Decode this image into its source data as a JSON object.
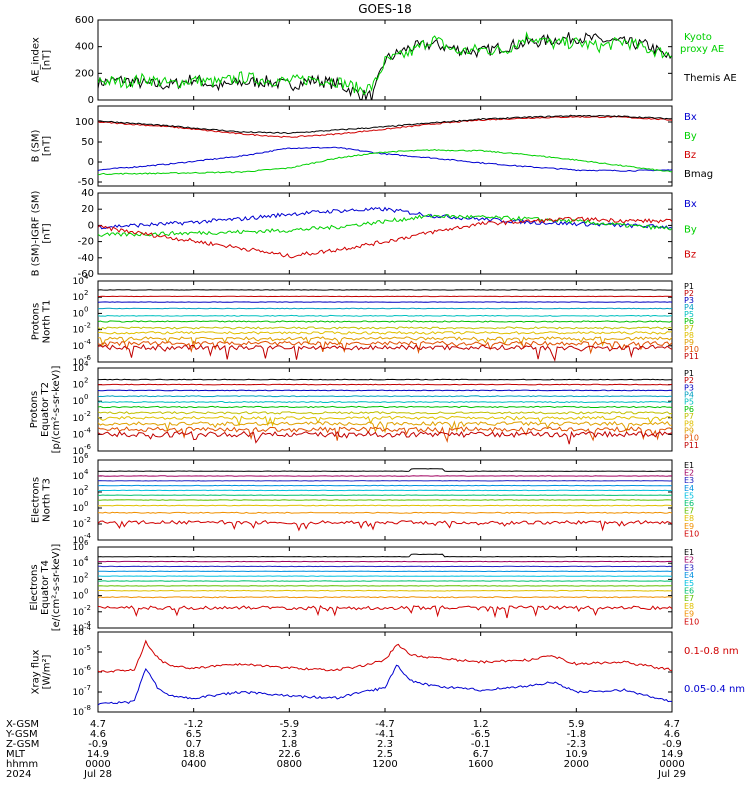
{
  "chart_data": {
    "type": "line",
    "title": "GOES-18",
    "x": {
      "range": [
        0,
        24
      ],
      "tick_hours": [
        0,
        4,
        8,
        12,
        16,
        20,
        24
      ],
      "ephemeris_rows": [
        {
          "label": "X-GSM",
          "values": [
            "4.7",
            "-1.2",
            "-5.9",
            "-4.7",
            "1.2",
            "5.9",
            "4.7"
          ]
        },
        {
          "label": "Y-GSM",
          "values": [
            "4.6",
            "6.5",
            "2.3",
            "-4.1",
            "-6.5",
            "-1.8",
            "4.6"
          ]
        },
        {
          "label": "Z-GSM",
          "values": [
            "-0.9",
            "0.7",
            "1.8",
            "2.3",
            "-0.1",
            "-2.3",
            "-0.9"
          ]
        },
        {
          "label": "MLT",
          "values": [
            "14.9",
            "18.8",
            "22.6",
            "2.5",
            "6.7",
            "10.9",
            "14.9"
          ]
        },
        {
          "label": "hhmm",
          "values": [
            "0000",
            "0400",
            "0800",
            "1200",
            "1600",
            "2000",
            "0000"
          ]
        },
        {
          "label": "2024",
          "values": [
            "Jul 28",
            "",
            "",
            "",
            "",
            "",
            "Jul 29"
          ]
        }
      ]
    },
    "panels": [
      {
        "id": "ae",
        "ylabel": [
          "AE_index",
          "[nT]"
        ],
        "ylim": [
          0,
          600
        ],
        "yticks": [
          "0",
          "200",
          "400",
          "600"
        ],
        "legend": [
          {
            "text": "Kyoto",
            "color": "#00d000"
          },
          {
            "text": "proxy AE",
            "color": "#00d000"
          },
          {
            "text": "Themis AE",
            "color": "#000000"
          }
        ],
        "series": [
          {
            "name": "Themis AE",
            "color": "#000000",
            "x": [
              0,
              1,
              2,
              3,
              4,
              5,
              6,
              7,
              8,
              9,
              10,
              11,
              11.5,
              12,
              13,
              14,
              15,
              16,
              17,
              18,
              19,
              20,
              21,
              22,
              23,
              24
            ],
            "y": [
              130,
              150,
              120,
              110,
              160,
              100,
              130,
              140,
              110,
              150,
              120,
              40,
              30,
              300,
              390,
              420,
              380,
              360,
              400,
              430,
              450,
              470,
              450,
              430,
              410,
              300
            ]
          },
          {
            "name": "Kyoto proxy AE",
            "color": "#00d000",
            "x": [
              0,
              1,
              2,
              3,
              4,
              5,
              6,
              7,
              8,
              9,
              10,
              11,
              11.5,
              12,
              13,
              14,
              15,
              16,
              17,
              18,
              19,
              20,
              21,
              22,
              23,
              24
            ],
            "y": [
              150,
              130,
              160,
              120,
              150,
              130,
              170,
              150,
              140,
              160,
              140,
              80,
              100,
              290,
              350,
              460,
              360,
              380,
              370,
              480,
              420,
              430,
              400,
              440,
              380,
              340
            ]
          }
        ]
      },
      {
        "id": "bsm",
        "ylabel": [
          "B (SM)",
          "[nT]"
        ],
        "ylim": [
          -60,
          140
        ],
        "yticks": [
          "-50",
          "0",
          "50",
          "100"
        ],
        "legend": [
          {
            "text": "Bx",
            "color": "#0000d0"
          },
          {
            "text": "By",
            "color": "#00d000"
          },
          {
            "text": "Bz",
            "color": "#d00000"
          },
          {
            "text": "Bmag",
            "color": "#000000"
          }
        ],
        "series": [
          {
            "name": "Bx",
            "color": "#0000d0",
            "x": [
              0,
              3,
              6,
              8,
              10,
              12,
              14,
              16,
              18,
              20,
              22,
              24
            ],
            "y": [
              -20,
              -5,
              15,
              35,
              36,
              20,
              10,
              -2,
              -12,
              -20,
              -22,
              -20
            ]
          },
          {
            "name": "By",
            "color": "#00d000",
            "x": [
              0,
              3,
              6,
              8,
              10,
              12,
              14,
              16,
              18,
              20,
              22,
              24
            ],
            "y": [
              -30,
              -28,
              -25,
              -15,
              10,
              25,
              30,
              28,
              18,
              5,
              -10,
              -25
            ]
          },
          {
            "name": "Bz",
            "color": "#d00000",
            "x": [
              0,
              3,
              6,
              8,
              10,
              12,
              14,
              16,
              18,
              20,
              22,
              24
            ],
            "y": [
              100,
              88,
              70,
              62,
              70,
              82,
              95,
              105,
              110,
              113,
              112,
              105
            ]
          },
          {
            "name": "Bmag",
            "color": "#000000",
            "x": [
              0,
              3,
              6,
              8,
              10,
              12,
              14,
              16,
              18,
              20,
              22,
              24
            ],
            "y": [
              103,
              90,
              75,
              72,
              80,
              88,
              98,
              107,
              112,
              116,
              114,
              108
            ]
          }
        ]
      },
      {
        "id": "dbsm",
        "ylabel": [
          "B (SM)-IGRF (SM)",
          "[nT]"
        ],
        "ylim": [
          -60,
          40
        ],
        "yticks": [
          "-60",
          "-40",
          "-20",
          "0",
          "20",
          "40"
        ],
        "legend": [
          {
            "text": "Bx",
            "color": "#0000d0"
          },
          {
            "text": "By",
            "color": "#00d000"
          },
          {
            "text": "Bz",
            "color": "#d00000"
          }
        ],
        "series": [
          {
            "name": "Bx",
            "color": "#0000d0",
            "x": [
              0,
              3,
              6,
              8,
              10,
              12,
              14,
              16,
              18,
              20,
              22,
              24
            ],
            "y": [
              -2,
              2,
              8,
              14,
              18,
              20,
              12,
              8,
              4,
              2,
              0,
              -2
            ]
          },
          {
            "name": "By",
            "color": "#00d000",
            "x": [
              0,
              3,
              6,
              8,
              10,
              12,
              14,
              16,
              18,
              20,
              22,
              24
            ],
            "y": [
              -12,
              -10,
              -8,
              -6,
              -2,
              5,
              12,
              10,
              8,
              5,
              0,
              -4
            ]
          },
          {
            "name": "Bz",
            "color": "#d00000",
            "x": [
              0,
              3,
              6,
              8,
              10,
              12,
              14,
              16,
              18,
              20,
              22,
              24
            ],
            "y": [
              -2,
              -15,
              -28,
              -38,
              -30,
              -20,
              -8,
              2,
              5,
              8,
              6,
              5
            ]
          }
        ]
      },
      {
        "id": "pn",
        "ylabel": [
          "Protons",
          "North T1"
        ],
        "ylim_log10": [
          -6,
          4
        ],
        "yticks_exp": [
          -6,
          -4,
          -2,
          0,
          2,
          4
        ],
        "channels": [
          "P1",
          "P2",
          "P3",
          "P4",
          "P5",
          "P6",
          "P7",
          "P8",
          "P9",
          "P10",
          "P11"
        ],
        "channel_log_levels": [
          2.9,
          2.1,
          1.4,
          0.6,
          -0.3,
          -1.0,
          -1.8,
          -2.4,
          -3.1,
          -3.7,
          -4.2
        ],
        "channel_noise": [
          0.05,
          0.05,
          0.05,
          0.07,
          0.1,
          0.15,
          0.25,
          0.3,
          0.4,
          0.5,
          0.6
        ]
      },
      {
        "id": "pe",
        "ylabel": [
          "Protons",
          "Equator T2",
          "[p/(cm²-s-sr-keV)]"
        ],
        "ylim_log10": [
          -6,
          4
        ],
        "yticks_exp": [
          -6,
          -4,
          -2,
          0,
          2,
          4
        ],
        "channels": [
          "P1",
          "P2",
          "P3",
          "P4",
          "P5",
          "P6",
          "P7",
          "P8",
          "P9",
          "P10",
          "P11"
        ],
        "channel_log_levels": [
          2.6,
          2.0,
          1.3,
          0.6,
          -0.1,
          -0.7,
          -1.4,
          -2.0,
          -2.7,
          -3.4,
          -4.0
        ],
        "channel_noise": [
          0.08,
          0.08,
          0.08,
          0.1,
          0.12,
          0.15,
          0.25,
          0.35,
          0.45,
          0.55,
          0.65
        ]
      },
      {
        "id": "en",
        "ylabel": [
          "Electrons",
          "North T3"
        ],
        "ylim_log10": [
          -4,
          6
        ],
        "yticks_exp": [
          -4,
          -2,
          0,
          2,
          4,
          6
        ],
        "channels": [
          "E1",
          "E2",
          "E3",
          "E4",
          "E5",
          "E6",
          "E7",
          "E8",
          "E9",
          "E10"
        ],
        "channel_log_levels": [
          4.6,
          4.0,
          3.4,
          2.8,
          2.2,
          1.6,
          1.0,
          0.3,
          -0.6,
          -1.8
        ],
        "channel_noise": [
          0.05,
          0.05,
          0.05,
          0.05,
          0.05,
          0.05,
          0.06,
          0.08,
          0.12,
          0.45
        ]
      },
      {
        "id": "ee",
        "ylabel": [
          "Electrons",
          "Equator T4",
          "[e/(cm²-s-sr-keV)]"
        ],
        "ylim_log10": [
          -4,
          6
        ],
        "yticks_exp": [
          -4,
          -2,
          0,
          2,
          4,
          6
        ],
        "channels": [
          "E1",
          "E2",
          "E3",
          "E4",
          "E5",
          "E6",
          "E7",
          "E8",
          "E9",
          "E10"
        ],
        "channel_log_levels": [
          4.8,
          4.2,
          3.6,
          3.0,
          2.4,
          1.8,
          1.2,
          0.6,
          -0.2,
          -1.5
        ],
        "channel_noise": [
          0.05,
          0.05,
          0.05,
          0.05,
          0.05,
          0.05,
          0.06,
          0.08,
          0.12,
          0.45
        ]
      },
      {
        "id": "xray",
        "ylabel": [
          "Xray flux",
          "[W/m²]"
        ],
        "ylim_log10": [
          -8,
          -4
        ],
        "yticks_exp": [
          -8,
          -7,
          -6,
          -5,
          -4
        ],
        "legend": [
          {
            "text": "0.1-0.8 nm",
            "color": "#d00000"
          },
          {
            "text": "0.05-0.4 nm",
            "color": "#0000d0"
          }
        ],
        "series": [
          {
            "name": "0.1-0.8 nm",
            "color": "#d00000",
            "x": [
              0,
              1.5,
              2,
              2.5,
              3,
              4,
              6,
              8,
              10,
              11,
              12,
              12.5,
              13,
              14,
              16,
              18,
              19,
              20,
              22,
              24
            ],
            "log10": [
              -6.0,
              -5.9,
              -4.5,
              -5.3,
              -5.7,
              -5.8,
              -5.6,
              -5.8,
              -5.9,
              -5.7,
              -5.4,
              -4.6,
              -5.1,
              -5.3,
              -5.5,
              -5.4,
              -5.2,
              -5.6,
              -5.5,
              -5.9
            ]
          },
          {
            "name": "0.05-0.4 nm",
            "color": "#0000d0",
            "x": [
              0,
              1.5,
              2,
              2.5,
              3,
              4,
              6,
              8,
              10,
              11,
              12,
              12.5,
              13,
              14,
              16,
              18,
              19,
              20,
              22,
              24
            ],
            "log10": [
              -7.6,
              -7.5,
              -5.8,
              -6.8,
              -7.2,
              -7.3,
              -7.0,
              -7.2,
              -7.3,
              -7.0,
              -6.8,
              -5.6,
              -6.4,
              -6.7,
              -6.9,
              -6.7,
              -6.5,
              -7.0,
              -6.9,
              -7.5
            ]
          }
        ]
      }
    ]
  }
}
